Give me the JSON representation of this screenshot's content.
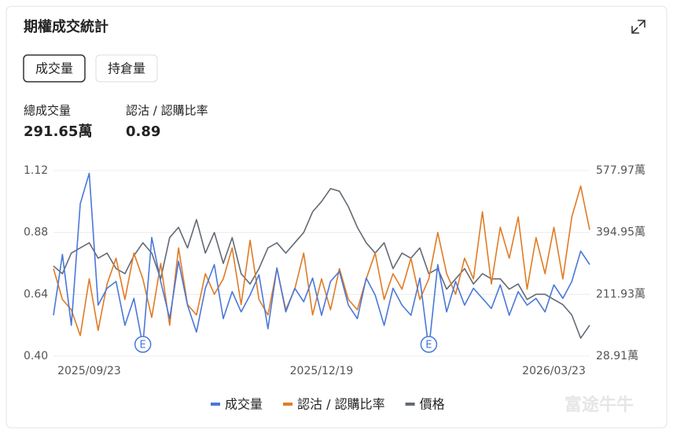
{
  "title": "期權成交統計",
  "tabs": [
    "成交量",
    "持倉量"
  ],
  "active_tab": 0,
  "stats": [
    {
      "label": "總成交量",
      "value": "291.65萬"
    },
    {
      "label": "認沽 / 認購比率",
      "value": 0.89
    }
  ],
  "watermark": "富途牛牛",
  "chart_data": {
    "type": "line",
    "categories": [
      null,
      null,
      null,
      null,
      "2025/09/23",
      null,
      null,
      null,
      null,
      null,
      null,
      null,
      null,
      null,
      null,
      null,
      null,
      null,
      null,
      null,
      null,
      null,
      null,
      null,
      null,
      null,
      null,
      null,
      null,
      null,
      "2025/12/19",
      null,
      null,
      null,
      null,
      null,
      null,
      null,
      null,
      null,
      null,
      null,
      null,
      null,
      null,
      null,
      null,
      null,
      null,
      null,
      null,
      null,
      null,
      null,
      null,
      null,
      "2026/03/23",
      null,
      null,
      null,
      null
    ],
    "series": [
      {
        "name": "成交量",
        "color": "#4a78d8",
        "axis": "y2",
        "values": [
          150,
          330,
          120,
          480,
          570,
          180,
          230,
          250,
          120,
          200,
          60,
          380,
          250,
          140,
          310,
          180,
          100,
          230,
          300,
          140,
          220,
          160,
          210,
          270,
          110,
          290,
          160,
          230,
          190,
          260,
          150,
          250,
          280,
          180,
          140,
          260,
          210,
          120,
          230,
          180,
          150,
          260,
          50,
          300,
          160,
          250,
          180,
          230,
          200,
          170,
          240,
          150,
          220,
          180,
          200,
          160,
          240,
          200,
          250,
          340,
          300
        ]
      },
      {
        "name": "認沽 / 認購比率",
        "color": "#e07b25",
        "values": [
          0.74,
          0.62,
          0.58,
          0.48,
          0.7,
          0.5,
          0.68,
          0.78,
          0.62,
          0.8,
          0.7,
          0.55,
          0.76,
          0.52,
          0.82,
          0.6,
          0.56,
          0.72,
          0.64,
          0.7,
          0.82,
          0.6,
          0.85,
          0.62,
          0.56,
          0.74,
          0.58,
          0.66,
          0.8,
          0.56,
          0.7,
          0.58,
          0.74,
          0.62,
          0.58,
          0.7,
          0.8,
          0.62,
          0.72,
          0.66,
          0.78,
          0.62,
          0.7,
          0.88,
          0.72,
          0.64,
          0.78,
          0.7,
          0.96,
          0.68,
          0.9,
          0.78,
          0.94,
          0.66,
          0.86,
          0.72,
          0.9,
          0.7,
          0.94,
          1.06,
          0.89
        ]
      },
      {
        "name": "價格",
        "color": "#636a75",
        "values": [
          0.75,
          0.72,
          0.8,
          0.82,
          0.84,
          0.78,
          0.8,
          0.74,
          0.72,
          0.79,
          0.84,
          0.8,
          0.7,
          0.86,
          0.9,
          0.82,
          0.93,
          0.8,
          0.88,
          0.76,
          0.86,
          0.72,
          0.68,
          0.74,
          0.82,
          0.84,
          0.8,
          0.84,
          0.88,
          0.96,
          1.0,
          1.05,
          1.04,
          0.98,
          0.9,
          0.84,
          0.8,
          0.84,
          0.74,
          0.8,
          0.78,
          0.82,
          0.72,
          0.74,
          0.66,
          0.7,
          0.74,
          0.68,
          0.72,
          0.7,
          0.7,
          0.66,
          0.68,
          0.62,
          0.64,
          0.64,
          0.62,
          0.6,
          0.56,
          0.47,
          0.52
        ]
      }
    ],
    "ylim": [
      0.4,
      1.12
    ],
    "yticks": [
      {
        "value": 0.4,
        "label": "0.40"
      },
      0.64,
      0.88,
      1.12
    ],
    "y2lim": [
      28.91,
      577.97
    ],
    "y2ticks": [
      {
        "value": 28.91,
        "label": "28.91萬"
      },
      {
        "value": 211.93,
        "label": "211.93萬"
      },
      {
        "value": 394.95,
        "label": "394.95萬"
      },
      {
        "value": 577.97,
        "label": "577.97萬"
      }
    ],
    "events": [
      {
        "label": "E",
        "at": 10
      },
      {
        "label": "E",
        "at": 42
      }
    ],
    "grid": true,
    "legend": "bottom"
  }
}
